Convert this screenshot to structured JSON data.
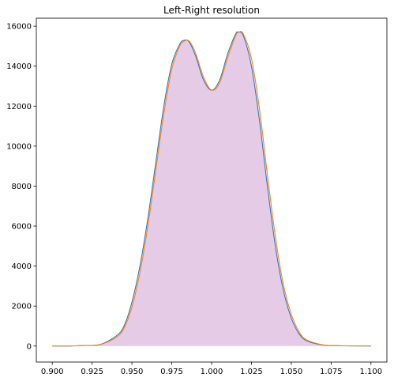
{
  "chart_data": {
    "type": "area",
    "title": "Left-Right resolution",
    "xlabel": "",
    "ylabel": "",
    "xlim": [
      0.89,
      1.11
    ],
    "ylim": [
      -800,
      16400
    ],
    "grid": false,
    "x_ticks": [
      0.9,
      0.925,
      0.95,
      0.975,
      1.0,
      1.025,
      1.05,
      1.075,
      1.1
    ],
    "x_tick_labels": [
      "0.900",
      "0.925",
      "0.950",
      "0.975",
      "1.000",
      "1.025",
      "1.050",
      "1.075",
      "1.100"
    ],
    "y_ticks": [
      0,
      2000,
      4000,
      6000,
      8000,
      10000,
      12000,
      14000,
      16000
    ],
    "y_tick_labels": [
      "0",
      "2000",
      "4000",
      "6000",
      "8000",
      "10000",
      "12000",
      "14000",
      "16000"
    ],
    "series": [
      {
        "color": "#1f77b4",
        "x": [
          0.9,
          0.91,
          0.92,
          0.93,
          0.94,
          0.945,
          0.95,
          0.955,
          0.96,
          0.965,
          0.97,
          0.975,
          0.98,
          0.983,
          0.986,
          0.99,
          0.995,
          1.0,
          1.005,
          1.01,
          1.015,
          1.017,
          1.02,
          1.025,
          1.03,
          1.035,
          1.04,
          1.045,
          1.05,
          1.055,
          1.06,
          1.07,
          1.08,
          1.09,
          1.1
        ],
        "y": [
          0,
          0,
          30,
          80,
          500,
          1000,
          2200,
          4000,
          6400,
          9200,
          12000,
          14100,
          15100,
          15300,
          15200,
          14500,
          13300,
          12800,
          13300,
          14600,
          15600,
          15700,
          15500,
          14000,
          11300,
          8000,
          5000,
          2800,
          1400,
          600,
          250,
          50,
          15,
          5,
          0
        ]
      },
      {
        "color": "#ff7f0e",
        "x": [
          0.9,
          0.91,
          0.92,
          0.93,
          0.94,
          0.945,
          0.95,
          0.955,
          0.96,
          0.965,
          0.97,
          0.975,
          0.98,
          0.983,
          0.986,
          0.99,
          0.995,
          1.0,
          1.005,
          1.01,
          1.015,
          1.017,
          1.02,
          1.025,
          1.03,
          1.035,
          1.04,
          1.045,
          1.05,
          1.055,
          1.06,
          1.07,
          1.08,
          1.09,
          1.1
        ],
        "y": [
          0,
          0,
          25,
          70,
          420,
          880,
          1950,
          3650,
          6000,
          8800,
          11600,
          13850,
          15000,
          15250,
          15250,
          14650,
          13450,
          12800,
          13150,
          14400,
          15500,
          15700,
          15600,
          14400,
          11900,
          8600,
          5500,
          3100,
          1600,
          700,
          300,
          60,
          18,
          6,
          0
        ]
      }
    ],
    "fill_color": "#e6cbe6",
    "axis_color": "#000000"
  }
}
